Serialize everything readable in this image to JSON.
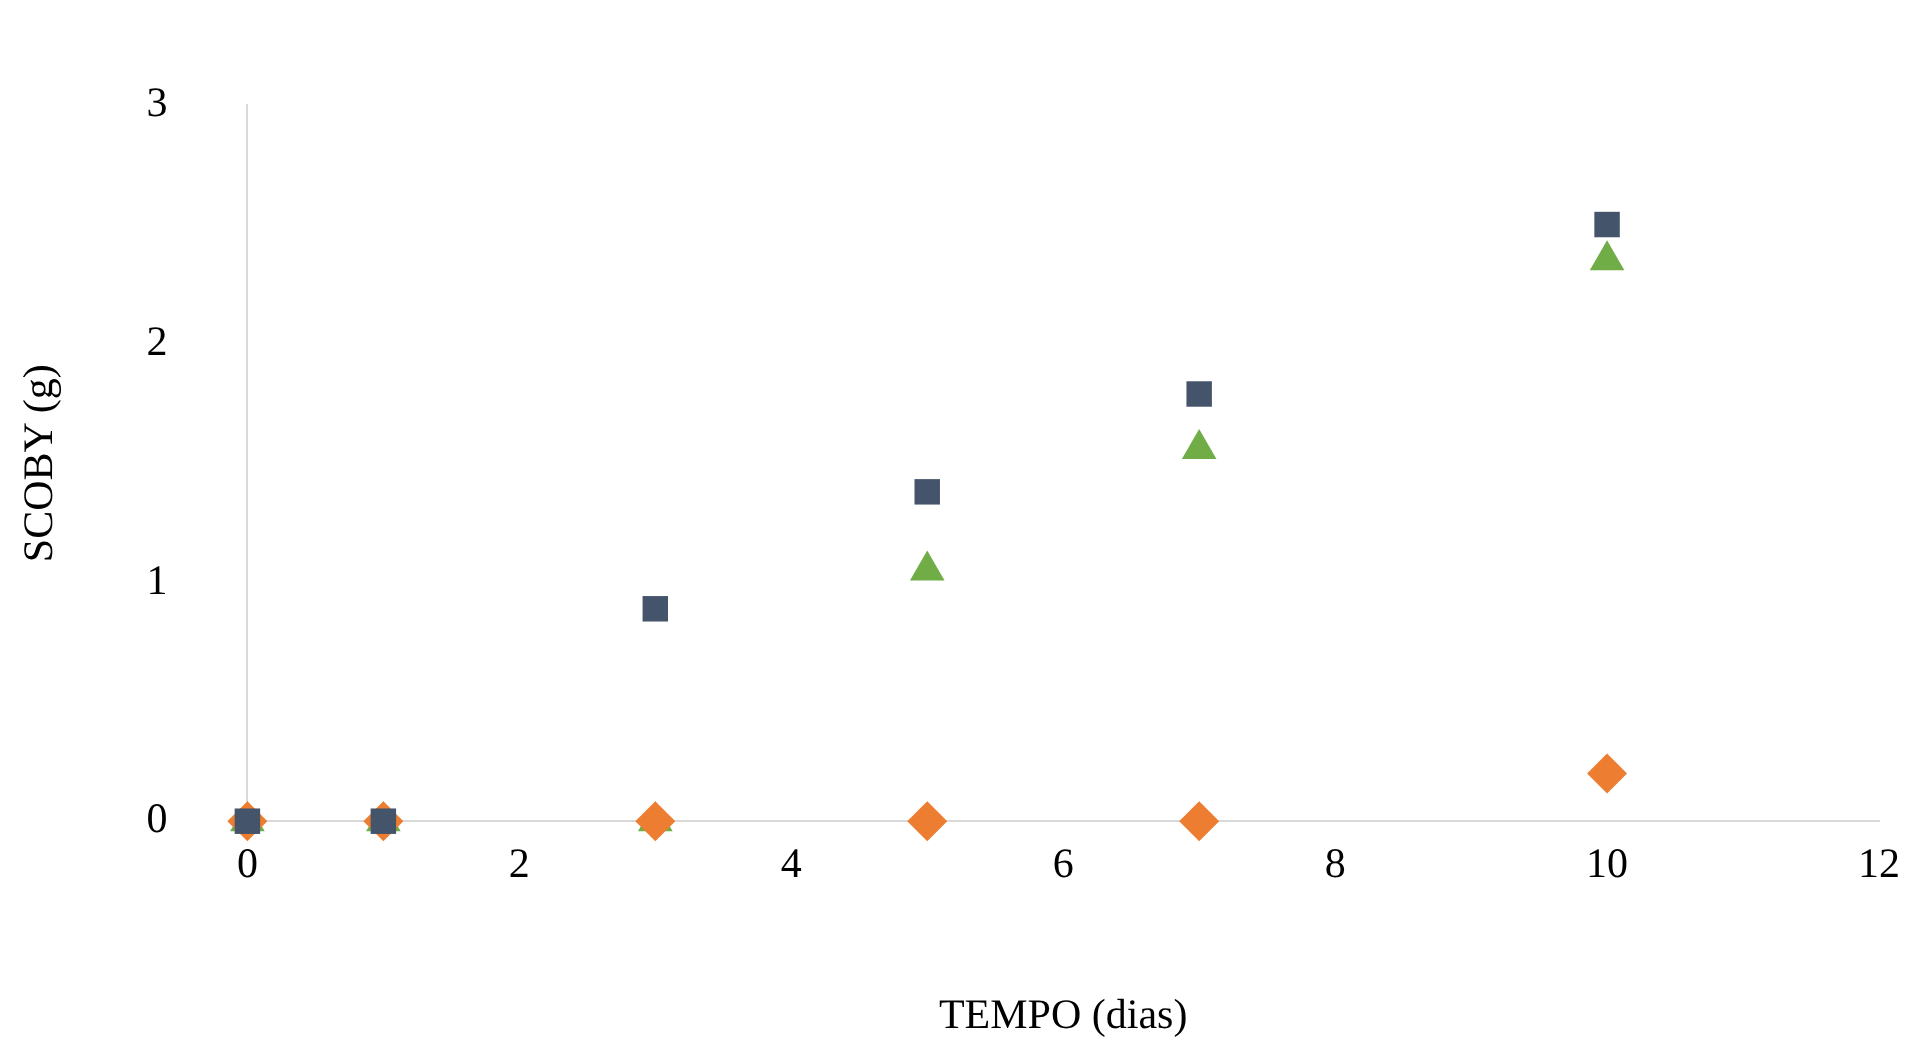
{
  "chart_data": {
    "type": "scatter",
    "xlabel": "TEMPO (dias)",
    "ylabel": "SCOBY (g)",
    "xlim": [
      0,
      12
    ],
    "xticks": [
      0,
      2,
      4,
      6,
      8,
      10,
      12
    ],
    "ylim": [
      0,
      3
    ],
    "yticks": [
      0,
      1,
      2,
      3
    ],
    "grid": false,
    "legend": false,
    "series": [
      {
        "color": "#44546a",
        "marker": "square",
        "x": [
          0,
          1,
          3,
          5,
          7,
          10
        ],
        "values": [
          0,
          0,
          0.89,
          1.38,
          1.79,
          2.5
        ]
      },
      {
        "color": "#ed7d31",
        "marker": "diamond",
        "x": [
          0,
          1,
          3,
          5,
          7,
          10
        ],
        "values": [
          0,
          0,
          0,
          0,
          0,
          0.2
        ]
      },
      {
        "color": "#70ad47",
        "marker": "triangle",
        "x": [
          0,
          1,
          3,
          5,
          7,
          10
        ],
        "values": [
          0,
          0,
          0,
          1.05,
          1.56,
          2.35
        ]
      }
    ]
  }
}
